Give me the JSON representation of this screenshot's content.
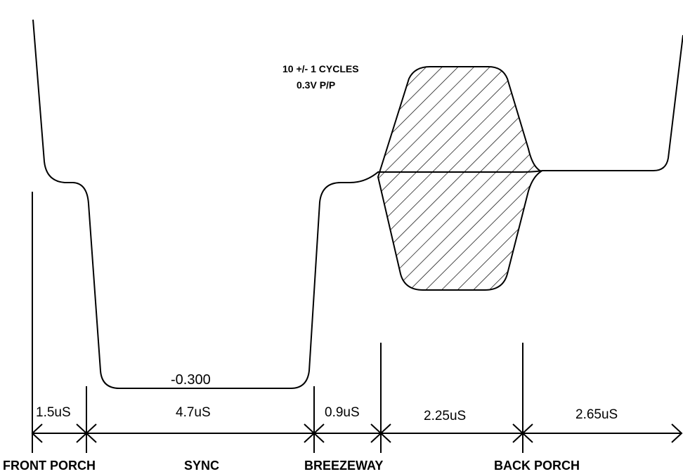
{
  "burst_annotation": {
    "line1": "10 +/- 1 CYCLES",
    "line2": "0.3V P/P"
  },
  "sync_level_label": "-0.300",
  "durations": {
    "front_porch": "1.5uS",
    "sync": "4.7uS",
    "breezeway": "0.9uS",
    "color_burst": "2.25uS",
    "back_porch_remainder": "2.65uS"
  },
  "section_labels": {
    "front_porch": "FRONT PORCH",
    "sync": "SYNC",
    "breezeway": "BREEZEWAY",
    "back_porch": "BACK PORCH"
  },
  "colors": {
    "stroke": "#000000",
    "background": "#ffffff"
  }
}
